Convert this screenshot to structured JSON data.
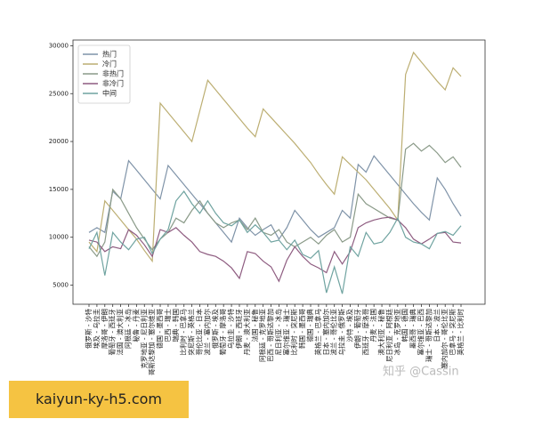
{
  "chart_data": {
    "type": "line",
    "categories": [
      "俄罗斯 - 沙特",
      "埃及 - 乌拉圭",
      "摩洛哥 - 伊朗",
      "葡萄牙 - 西班牙",
      "法国 - 澳大利亚",
      "阿根廷 - 冰岛",
      "秘鲁 - 丹麦",
      "克罗地亚 - 尼日利亚",
      "哥斯达黎加 - 塞尔维亚",
      "德国 - 墨西哥",
      "巴西 - 瑞士",
      "瑞典 - 韩国",
      "比利时 - 巴拿马",
      "突尼斯 - 英格兰",
      "哥伦比亚 - 日本",
      "波兰 - 塞内加尔",
      "俄罗斯 - 埃及",
      "葡萄牙 - 摩洛哥",
      "乌拉圭 - 沙特",
      "伊朗 - 西班牙",
      "丹麦 - 澳大利亚",
      "法国 - 秘鲁",
      "阿根廷 - 克罗地亚",
      "巴西 - 哥斯达黎加",
      "尼日利亚 - 冰岛",
      "塞尔维亚 - 瑞士",
      "比利时 - 突尼斯",
      "韩国 - 墨西哥",
      "德国 - 瑞典",
      "英格兰 - 巴拿马",
      "日本 - 塞内加尔",
      "波兰 - 哥伦比亚",
      "乌拉圭 - 俄罗斯",
      "沙特 - 埃及",
      "伊朗 - 葡萄牙",
      "西班牙 - 摩洛哥",
      "丹麦 - 法国",
      "澳大利亚 - 秘鲁",
      "尼日利亚 - 阿根廷",
      "冰岛 - 克罗地亚",
      "韩国 - 德国",
      "墨西哥 - 瑞典",
      "塞尔维亚 - 巴西",
      "瑞士 - 哥斯达黎加",
      "日本 - 波兰",
      "塞内加尔 - 哥伦比亚",
      "巴拿马 - 突尼斯",
      "英格兰 - 比利时"
    ],
    "series": [
      {
        "name": "热门",
        "color": "#7f93a8",
        "values": [
          10500,
          11000,
          10500,
          14800,
          14000,
          18000,
          17000,
          16000,
          15000,
          14000,
          17500,
          16500,
          15500,
          14500,
          13500,
          12500,
          11500,
          10500,
          9500,
          12000,
          11000,
          10200,
          10800,
          11300,
          9800,
          11000,
          12800,
          11800,
          10800,
          10000,
          10500,
          11000,
          12800,
          12000,
          17600,
          16800,
          18500,
          17500,
          16500,
          15500,
          14500,
          13500,
          12600,
          11800,
          16200,
          15000,
          13500,
          12200
        ]
      },
      {
        "name": "冷门",
        "color": "#bcae72",
        "values": [
          9500,
          8500,
          13800,
          12800,
          11800,
          10800,
          9800,
          8600,
          7500,
          24000,
          23000,
          22000,
          21000,
          20000,
          23200,
          26400,
          25400,
          24400,
          23400,
          22400,
          21400,
          20500,
          23400,
          22500,
          21600,
          20700,
          19800,
          18800,
          17800,
          16600,
          15500,
          14500,
          18400,
          17600,
          16800,
          16000,
          15000,
          14000,
          13000,
          11800,
          27000,
          29300,
          28300,
          27300,
          26300,
          25400,
          27700,
          26800
        ]
      },
      {
        "name": "非热门",
        "color": "#8a9a88",
        "values": [
          9000,
          8000,
          9500,
          15000,
          14000,
          12500,
          11000,
          9800,
          8700,
          9800,
          10500,
          12000,
          11500,
          12800,
          13800,
          12500,
          11500,
          11000,
          11500,
          11800,
          10800,
          12000,
          10500,
          10200,
          10800,
          9500,
          9000,
          9500,
          10000,
          9300,
          10200,
          10800,
          9500,
          10000,
          14500,
          13500,
          13000,
          12500,
          12000,
          11800,
          19200,
          19800,
          19000,
          19600,
          18800,
          17800,
          18400,
          17300
        ]
      },
      {
        "name": "非冷门",
        "color": "#8e5c80",
        "values": [
          9700,
          9500,
          8500,
          9000,
          8800,
          10800,
          10200,
          9200,
          8000,
          10800,
          10500,
          11000,
          10200,
          9500,
          8500,
          8200,
          8000,
          7500,
          6800,
          5700,
          8500,
          8300,
          7500,
          6900,
          5400,
          7600,
          9000,
          8000,
          7200,
          6800,
          6300,
          8500,
          7200,
          8500,
          11000,
          11500,
          11800,
          12000,
          12100,
          11800,
          11000,
          9800,
          9300,
          9800,
          10400,
          10500,
          9500,
          9400
        ]
      },
      {
        "name": "中间",
        "color": "#6fa3a0",
        "values": [
          8800,
          10500,
          6000,
          10500,
          9500,
          8700,
          9800,
          10000,
          8300,
          9800,
          10800,
          13800,
          14800,
          13500,
          12500,
          13800,
          12500,
          11500,
          11200,
          11800,
          10500,
          11300,
          10500,
          9500,
          9700,
          8700,
          9700,
          8200,
          7800,
          8600,
          4200,
          6900,
          4100,
          9000,
          8000,
          10500,
          9300,
          9500,
          10500,
          12000,
          10000,
          9500,
          9300,
          8800,
          10400,
          10600,
          10200,
          11200
        ]
      }
    ],
    "ylim": [
      3000,
      30600
    ],
    "yticks": [
      5000,
      10000,
      15000,
      20000,
      25000,
      30000
    ],
    "legend": "upper left"
  },
  "watermark": "知乎 @Cassin",
  "caption": "kaiyun-ky-h5.com"
}
